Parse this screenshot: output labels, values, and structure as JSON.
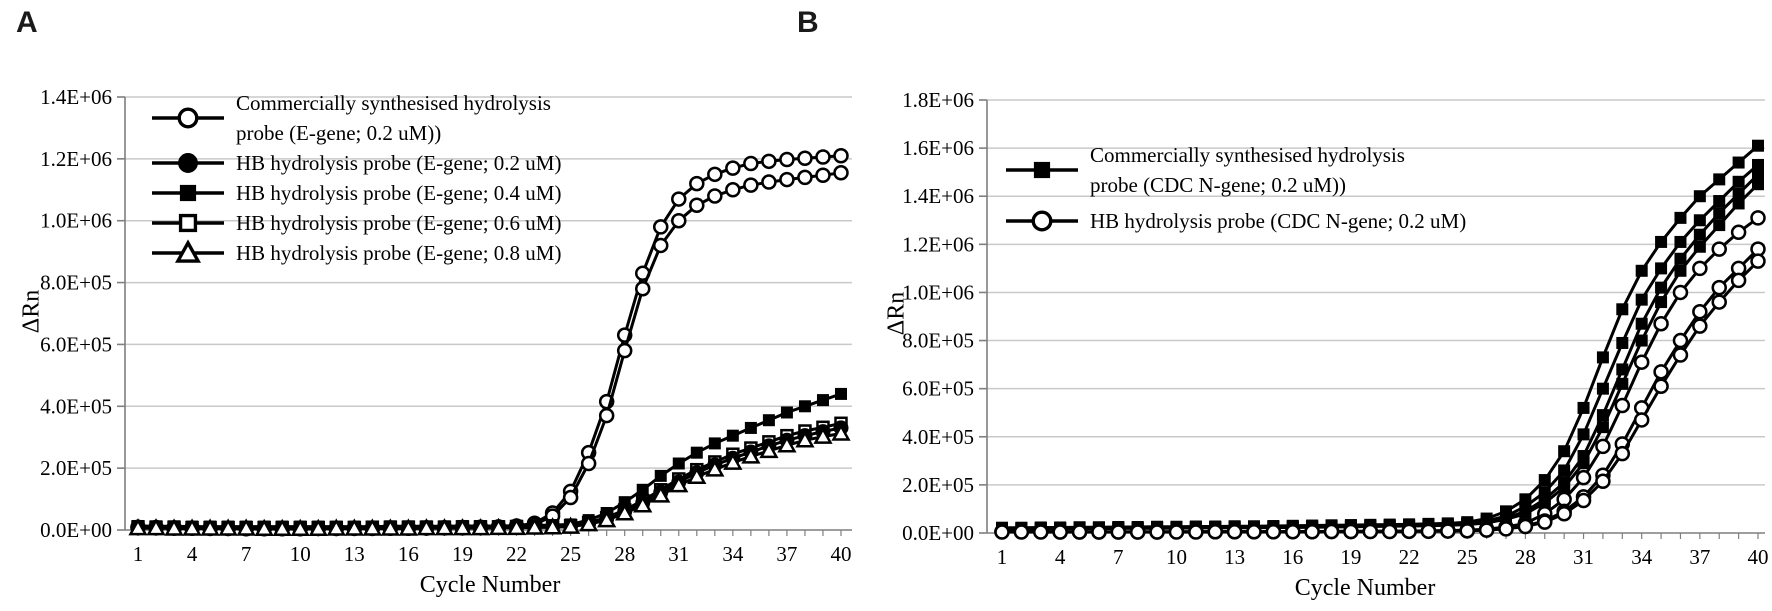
{
  "figure_type": "qPCR amplification curves",
  "chart_data": [
    {
      "type": "line",
      "panel_label": "A",
      "xlabel": "Cycle Number",
      "ylabel": "ΔRn",
      "x_range": [
        1,
        40
      ],
      "x_ticks": [
        1,
        4,
        7,
        10,
        13,
        16,
        19,
        22,
        25,
        28,
        31,
        34,
        37,
        40
      ],
      "ylim": [
        0,
        1400000
      ],
      "y_tick_values": [
        0,
        200000,
        400000,
        600000,
        800000,
        1000000,
        1200000,
        1400000
      ],
      "y_tick_labels": [
        "0.0E+00",
        "2.0E+05",
        "4.0E+05",
        "6.0E+05",
        "8.0E+05",
        "1.0E+06",
        "1.2E+06",
        "1.4E+06"
      ],
      "grid": "horizontal",
      "legend_position": "inside top-left",
      "legend": [
        {
          "label": "Commercially synthesised hydrolysis probe (E-gene; 0.2 uM))",
          "marker": "circle-open"
        },
        {
          "label": "HB hydrolysis probe (E-gene; 0.2 uM)",
          "marker": "circle-filled"
        },
        {
          "label": "HB hydrolysis probe (E-gene; 0.4 uM)",
          "marker": "square-filled"
        },
        {
          "label": "HB hydrolysis probe (E-gene; 0.6 uM)",
          "marker": "square-open"
        },
        {
          "label": "HB hydrolysis probe (E-gene; 0.8 uM)",
          "marker": "triangle-open"
        }
      ],
      "series": [
        {
          "name": "Commercial hydrolysis probe (E-gene; 0.2 uM) replicate 1",
          "marker": "circle-open",
          "values": [
            9000,
            8000,
            7000,
            6000,
            6000,
            5000,
            5000,
            5000,
            5000,
            5000,
            5000,
            5000,
            6000,
            6000,
            6000,
            6000,
            7000,
            7000,
            8000,
            9000,
            10000,
            13000,
            22000,
            55000,
            125000,
            250000,
            415000,
            630000,
            830000,
            980000,
            1070000,
            1120000,
            1150000,
            1170000,
            1185000,
            1192000,
            1198000,
            1202000,
            1206000,
            1210000
          ]
        },
        {
          "name": "Commercial hydrolysis probe (E-gene; 0.2 uM) replicate 2",
          "marker": "circle-open",
          "values": [
            8000,
            7000,
            6000,
            6000,
            5000,
            5000,
            4000,
            4000,
            4000,
            4000,
            5000,
            5000,
            5000,
            5000,
            6000,
            6000,
            6000,
            7000,
            7000,
            8000,
            9000,
            11000,
            18000,
            45000,
            105000,
            215000,
            370000,
            580000,
            780000,
            920000,
            1000000,
            1050000,
            1080000,
            1100000,
            1115000,
            1125000,
            1133000,
            1140000,
            1147000,
            1155000
          ]
        },
        {
          "name": "HB hydrolysis probe (E-gene; 0.4 uM)",
          "marker": "square-filled",
          "values": [
            13000,
            12000,
            12000,
            11000,
            11000,
            11000,
            11000,
            11000,
            11000,
            11000,
            11000,
            11000,
            11000,
            11000,
            12000,
            12000,
            12000,
            12000,
            13000,
            13000,
            13000,
            14000,
            15000,
            16000,
            18000,
            32000,
            55000,
            90000,
            130000,
            175000,
            215000,
            250000,
            280000,
            305000,
            330000,
            355000,
            380000,
            400000,
            420000,
            440000
          ]
        },
        {
          "name": "HB hydrolysis probe (E-gene; 0.6 uM)",
          "marker": "square-open",
          "values": [
            10000,
            9000,
            9000,
            8000,
            8000,
            8000,
            8000,
            8000,
            8000,
            8000,
            8000,
            8000,
            8000,
            9000,
            9000,
            9000,
            9000,
            9000,
            10000,
            10000,
            10000,
            11000,
            12000,
            13000,
            14000,
            24000,
            40000,
            65000,
            95000,
            130000,
            165000,
            195000,
            220000,
            245000,
            265000,
            285000,
            305000,
            320000,
            332000,
            345000
          ]
        },
        {
          "name": "HB hydrolysis probe (E-gene; 0.2 uM)",
          "marker": "circle-filled",
          "values": [
            7000,
            7000,
            6000,
            6000,
            6000,
            5000,
            5000,
            5000,
            5000,
            5000,
            5000,
            5000,
            5000,
            6000,
            6000,
            6000,
            6000,
            7000,
            7000,
            7000,
            8000,
            8000,
            9000,
            10000,
            12000,
            21000,
            36000,
            60000,
            88000,
            122000,
            155000,
            185000,
            210000,
            232000,
            252000,
            272000,
            290000,
            305000,
            318000,
            330000
          ]
        },
        {
          "name": "HB hydrolysis probe (E-gene; 0.8 uM)",
          "marker": "triangle-open",
          "values": [
            6000,
            6000,
            5000,
            5000,
            5000,
            5000,
            5000,
            4000,
            4000,
            4000,
            4000,
            5000,
            5000,
            5000,
            5000,
            5000,
            6000,
            6000,
            6000,
            6000,
            7000,
            7000,
            8000,
            9000,
            11000,
            19000,
            32000,
            54000,
            80000,
            112000,
            145000,
            172000,
            196000,
            218000,
            238000,
            256000,
            274000,
            290000,
            302000,
            312000
          ]
        }
      ]
    },
    {
      "type": "line",
      "panel_label": "B",
      "xlabel": "Cycle Number",
      "ylabel": "ΔRn",
      "x_range": [
        1,
        40
      ],
      "x_ticks": [
        1,
        4,
        7,
        10,
        13,
        16,
        19,
        22,
        25,
        28,
        31,
        34,
        37,
        40
      ],
      "ylim": [
        0,
        1800000
      ],
      "y_tick_values": [
        0,
        200000,
        400000,
        600000,
        800000,
        1000000,
        1200000,
        1400000,
        1600000,
        1800000
      ],
      "y_tick_labels": [
        "0.0E+00",
        "2.0E+05",
        "4.0E+05",
        "6.0E+05",
        "8.0E+05",
        "1.0E+06",
        "1.2E+06",
        "1.4E+06",
        "1.6E+06",
        "1.8E+06"
      ],
      "grid": "horizontal",
      "legend_position": "inside top-left",
      "legend": [
        {
          "label": "Commercially synthesised hydrolysis probe (CDC N-gene; 0.2 uM))",
          "marker": "square-filled"
        },
        {
          "label": "HB hydrolysis probe (CDC N-gene; 0.2 uM)",
          "marker": "circle-open"
        }
      ],
      "series": [
        {
          "name": "Commercial hydrolysis probe (CDC N-gene; 0.2 uM) replicate 1",
          "marker": "square-filled",
          "values": [
            22000,
            22000,
            23000,
            23000,
            24000,
            24000,
            25000,
            25000,
            26000,
            26000,
            27000,
            27000,
            28000,
            28000,
            29000,
            30000,
            31000,
            32000,
            33000,
            34000,
            35000,
            36000,
            38000,
            40000,
            45000,
            60000,
            90000,
            140000,
            220000,
            340000,
            520000,
            730000,
            930000,
            1090000,
            1210000,
            1310000,
            1400000,
            1470000,
            1540000,
            1610000
          ]
        },
        {
          "name": "Commercial hydrolysis probe (CDC N-gene; 0.2 uM) replicate 2",
          "marker": "square-filled",
          "values": [
            20000,
            20000,
            21000,
            21000,
            22000,
            22000,
            23000,
            23000,
            24000,
            24000,
            25000,
            25000,
            26000,
            26000,
            27000,
            27000,
            28000,
            29000,
            30000,
            31000,
            32000,
            33000,
            34000,
            36000,
            40000,
            50000,
            70000,
            110000,
            170000,
            260000,
            410000,
            600000,
            790000,
            970000,
            1100000,
            1210000,
            1300000,
            1380000,
            1460000,
            1530000
          ]
        },
        {
          "name": "Commercial hydrolysis probe (CDC N-gene; 0.2 uM) replicate 3",
          "marker": "square-filled",
          "values": [
            18000,
            18000,
            19000,
            19000,
            20000,
            20000,
            21000,
            21000,
            22000,
            22000,
            23000,
            23000,
            24000,
            24000,
            25000,
            25000,
            26000,
            27000,
            28000,
            29000,
            30000,
            31000,
            32000,
            34000,
            37000,
            45000,
            62000,
            90000,
            140000,
            210000,
            320000,
            490000,
            680000,
            870000,
            1020000,
            1140000,
            1240000,
            1330000,
            1410000,
            1490000
          ]
        },
        {
          "name": "Commercial hydrolysis probe (CDC N-gene; 0.2 uM) replicate 4",
          "marker": "square-filled",
          "values": [
            16000,
            16000,
            17000,
            17000,
            18000,
            18000,
            19000,
            19000,
            20000,
            20000,
            21000,
            21000,
            22000,
            22000,
            23000,
            23000,
            24000,
            25000,
            26000,
            27000,
            28000,
            29000,
            30000,
            32000,
            35000,
            42000,
            57000,
            80000,
            125000,
            190000,
            290000,
            440000,
            620000,
            800000,
            960000,
            1090000,
            1190000,
            1280000,
            1370000,
            1450000
          ]
        },
        {
          "name": "HB hydrolysis probe (CDC N-gene; 0.2 uM) replicate 1",
          "marker": "circle-open",
          "values": [
            6000,
            6000,
            5000,
            5000,
            5000,
            5000,
            5000,
            5000,
            5000,
            5000,
            5000,
            5000,
            6000,
            6000,
            6000,
            6000,
            6000,
            7000,
            7000,
            7000,
            8000,
            8000,
            9000,
            10000,
            12000,
            16000,
            25000,
            40000,
            80000,
            140000,
            230000,
            360000,
            530000,
            710000,
            870000,
            1000000,
            1100000,
            1180000,
            1250000,
            1310000
          ]
        },
        {
          "name": "HB hydrolysis probe (CDC N-gene; 0.2 uM) replicate 2",
          "marker": "circle-open",
          "values": [
            5000,
            5000,
            5000,
            4000,
            4000,
            4000,
            4000,
            4000,
            4000,
            5000,
            5000,
            5000,
            5000,
            5000,
            5000,
            6000,
            6000,
            6000,
            6000,
            7000,
            7000,
            7000,
            8000,
            9000,
            10000,
            13000,
            19000,
            30000,
            50000,
            90000,
            150000,
            240000,
            370000,
            520000,
            670000,
            800000,
            920000,
            1020000,
            1100000,
            1180000
          ]
        },
        {
          "name": "HB hydrolysis probe (CDC N-gene; 0.2 uM) replicate 3",
          "marker": "circle-open",
          "values": [
            4000,
            4000,
            4000,
            4000,
            4000,
            4000,
            4000,
            4000,
            4000,
            4000,
            4000,
            5000,
            5000,
            5000,
            5000,
            5000,
            5000,
            6000,
            6000,
            6000,
            6000,
            7000,
            7000,
            8000,
            9000,
            12000,
            17000,
            27000,
            45000,
            80000,
            135000,
            215000,
            330000,
            470000,
            610000,
            740000,
            860000,
            960000,
            1050000,
            1130000
          ]
        }
      ]
    }
  ]
}
